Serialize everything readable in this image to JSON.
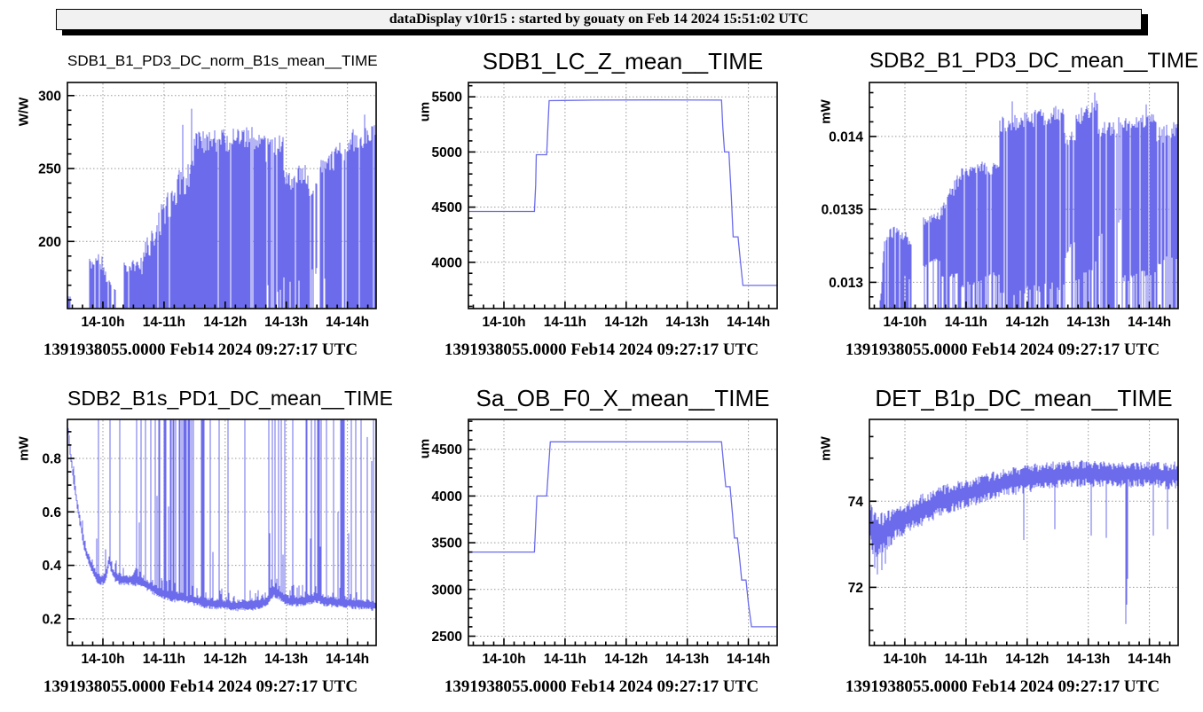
{
  "header": {
    "text": "dataDisplay v10r15 : started by gouaty on Feb 14 2024 15:51:02 UTC"
  },
  "colors": {
    "series": "#6b6bec",
    "grid": "#999999",
    "frame": "#000000",
    "header_bg": "#f1f1f1"
  },
  "time_axis": {
    "range_hours": [
      9.42,
      14.47
    ],
    "minor_ticks_per_hour": 6,
    "ticks": [
      {
        "value": 10,
        "label": "14-10h"
      },
      {
        "value": 11,
        "label": "14-11h"
      },
      {
        "value": 12,
        "label": "14-12h"
      },
      {
        "value": 13,
        "label": "14-13h"
      },
      {
        "value": 14,
        "label": "14-14h"
      }
    ]
  },
  "segment_keys": "x0,x1,top0,top1,bot0,bot1,gap_prob,bottom_spike_prob,top_jitter",
  "chart_data": [
    {
      "type": "area",
      "style": "noisy_fill",
      "title": "SDB1_B1_PD3_DC_norm_B1s_mean__TIME",
      "ylabel": "W/W",
      "footer": "1391938055.0000 Feb14 2024 09:27:17 UTC",
      "ylim": [
        154,
        309
      ],
      "yticks": [
        {
          "value": 200,
          "label": "200"
        },
        {
          "value": 250,
          "label": "250"
        },
        {
          "value": 300,
          "label": "300"
        }
      ],
      "y_minor": 10,
      "series": {
        "segments": [
          [
            9.44,
            9.47,
            166,
            160,
            154,
            154,
            0.3,
            1,
            4
          ],
          [
            9.79,
            9.93,
            184,
            190,
            154,
            154,
            0.04,
            1,
            5
          ],
          [
            9.96,
            10.08,
            189,
            172,
            154,
            154,
            0.06,
            1,
            6
          ],
          [
            10.1,
            10.22,
            173,
            168,
            154,
            154,
            0.12,
            1,
            5
          ],
          [
            10.35,
            10.62,
            183,
            184,
            154,
            154,
            0.03,
            1,
            4
          ],
          [
            10.62,
            10.95,
            186,
            214,
            154,
            154,
            0.06,
            1,
            10
          ],
          [
            10.95,
            11.25,
            214,
            238,
            154,
            154,
            0.07,
            1,
            12
          ],
          [
            11.25,
            11.5,
            238,
            249,
            154,
            154,
            0.07,
            1,
            13
          ],
          [
            11.5,
            12.65,
            267,
            272,
            154,
            154,
            0.05,
            1,
            8
          ],
          [
            12.65,
            12.95,
            263,
            265,
            162,
            162,
            0.14,
            0.8,
            9
          ],
          [
            12.95,
            13.35,
            241,
            246,
            168,
            168,
            0.12,
            0.75,
            8
          ],
          [
            13.35,
            13.55,
            232,
            238,
            176,
            176,
            0.22,
            0.7,
            8
          ],
          [
            13.55,
            13.7,
            248,
            251,
            170,
            170,
            0.14,
            0.8,
            8
          ],
          [
            13.7,
            14.05,
            254,
            266,
            154,
            154,
            0.07,
            1,
            8
          ],
          [
            14.05,
            14.47,
            269,
            274,
            154,
            154,
            0.06,
            1,
            8
          ]
        ],
        "spikes": [
          [
            11.3,
            280
          ],
          [
            11.45,
            291
          ],
          [
            14.28,
            287
          ],
          [
            14.33,
            276
          ]
        ]
      }
    },
    {
      "type": "line",
      "style": "step_line",
      "title": "SDB1_LC_Z_mean__TIME",
      "ylabel": "um",
      "footer": "1391938055.0000 Feb14 2024 09:27:17 UTC",
      "ylim": [
        3580,
        5630
      ],
      "yticks": [
        {
          "value": 4000,
          "label": "4000"
        },
        {
          "value": 4500,
          "label": "4500"
        },
        {
          "value": 5000,
          "label": "5000"
        },
        {
          "value": 5500,
          "label": "5500"
        }
      ],
      "y_minor": 100,
      "series": {
        "points": [
          [
            9.42,
            4460
          ],
          [
            10.5,
            4460
          ],
          [
            10.52,
            4700
          ],
          [
            10.53,
            4975
          ],
          [
            10.7,
            4975
          ],
          [
            10.72,
            5230
          ],
          [
            10.74,
            5465
          ],
          [
            11.5,
            5470
          ],
          [
            12.5,
            5472
          ],
          [
            13.56,
            5470
          ],
          [
            13.58,
            5230
          ],
          [
            13.61,
            5000
          ],
          [
            13.68,
            5000
          ],
          [
            13.72,
            4600
          ],
          [
            13.75,
            4230
          ],
          [
            13.83,
            4230
          ],
          [
            13.87,
            4000
          ],
          [
            13.91,
            3790
          ],
          [
            14.47,
            3790
          ]
        ]
      }
    },
    {
      "type": "area",
      "style": "noisy_fill",
      "title": "SDB2_B1_PD3_DC_mean__TIME",
      "ylabel": "mW",
      "footer": "1391938055.0000 Feb14 2024 09:27:17 UTC",
      "ylim": [
        0.01282,
        0.01437
      ],
      "yticks": [
        {
          "value": 0.013,
          "label": "0.013"
        },
        {
          "value": 0.0135,
          "label": "0.0135"
        },
        {
          "value": 0.014,
          "label": "0.014"
        }
      ],
      "y_minor": 0.0001,
      "series": {
        "segments": [
          [
            9.6,
            9.66,
            0.0129,
            0.01325,
            0.01282,
            0.01282,
            0.05,
            1,
            5e-05
          ],
          [
            9.7,
            9.9,
            0.01332,
            0.01336,
            0.01284,
            0.013,
            0.07,
            0.9,
            4e-05
          ],
          [
            9.93,
            10.12,
            0.01333,
            0.01328,
            0.013,
            0.01302,
            0.14,
            0.6,
            4e-05
          ],
          [
            10.3,
            10.6,
            0.01342,
            0.01346,
            0.0131,
            0.01315,
            0.05,
            0.5,
            3e-05
          ],
          [
            10.6,
            10.9,
            0.01348,
            0.01372,
            0.013,
            0.01305,
            0.09,
            0.55,
            5e-05
          ],
          [
            10.9,
            11.3,
            0.01374,
            0.0138,
            0.01295,
            0.013,
            0.09,
            0.55,
            4e-05
          ],
          [
            11.3,
            11.55,
            0.01376,
            0.0138,
            0.013,
            0.01305,
            0.16,
            0.55,
            4e-05
          ],
          [
            11.55,
            12.6,
            0.01408,
            0.01416,
            0.0129,
            0.01295,
            0.06,
            0.7,
            6e-05
          ],
          [
            12.6,
            12.8,
            0.01398,
            0.014,
            0.0131,
            0.0133,
            0.26,
            0.65,
            5e-05
          ],
          [
            12.8,
            13.15,
            0.01412,
            0.01419,
            0.013,
            0.0131,
            0.09,
            0.65,
            6e-05
          ],
          [
            13.15,
            13.55,
            0.01405,
            0.01408,
            0.0133,
            0.0134,
            0.3,
            0.8,
            6e-05
          ],
          [
            13.55,
            14.1,
            0.01408,
            0.01412,
            0.013,
            0.01305,
            0.09,
            0.65,
            5e-05
          ],
          [
            14.1,
            14.47,
            0.014,
            0.01405,
            0.0131,
            0.01315,
            0.16,
            0.7,
            6e-05
          ]
        ],
        "spikes": [
          [
            11.76,
            0.01424
          ],
          [
            13.1,
            0.0143
          ],
          [
            13.95,
            0.01422
          ]
        ]
      }
    },
    {
      "type": "line",
      "style": "baseline_with_spikes",
      "title": "SDB2_B1s_PD1_DC_mean__TIME",
      "ylabel": "mW",
      "footer": "1391938055.0000 Feb14 2024 09:27:17 UTC",
      "ylim": [
        0.1,
        0.946
      ],
      "yticks": [
        {
          "value": 0.2,
          "label": "0.2"
        },
        {
          "value": 0.4,
          "label": "0.4"
        },
        {
          "value": 0.6,
          "label": "0.6"
        },
        {
          "value": 0.8,
          "label": "0.8"
        }
      ],
      "y_minor": 0.05,
      "series": {
        "baseline": [
          [
            9.42,
            0.93
          ],
          [
            9.47,
            0.82
          ],
          [
            9.52,
            0.72
          ],
          [
            9.6,
            0.6
          ],
          [
            9.7,
            0.47
          ],
          [
            9.8,
            0.4
          ],
          [
            9.9,
            0.355
          ],
          [
            10.0,
            0.345
          ],
          [
            10.05,
            0.36
          ],
          [
            10.1,
            0.42
          ],
          [
            10.15,
            0.38
          ],
          [
            10.2,
            0.36
          ],
          [
            10.3,
            0.345
          ],
          [
            10.5,
            0.345
          ],
          [
            10.6,
            0.34
          ],
          [
            10.7,
            0.33
          ],
          [
            10.8,
            0.315
          ],
          [
            10.9,
            0.3
          ],
          [
            11.0,
            0.295
          ],
          [
            11.1,
            0.285
          ],
          [
            11.3,
            0.28
          ],
          [
            11.5,
            0.27
          ],
          [
            11.7,
            0.26
          ],
          [
            11.9,
            0.255
          ],
          [
            12.1,
            0.25
          ],
          [
            12.4,
            0.25
          ],
          [
            12.6,
            0.255
          ],
          [
            12.7,
            0.27
          ],
          [
            12.8,
            0.3
          ],
          [
            12.9,
            0.29
          ],
          [
            13.0,
            0.27
          ],
          [
            13.2,
            0.265
          ],
          [
            13.4,
            0.275
          ],
          [
            13.5,
            0.28
          ],
          [
            13.6,
            0.27
          ],
          [
            13.8,
            0.262
          ],
          [
            14.0,
            0.26
          ],
          [
            14.2,
            0.255
          ],
          [
            14.47,
            0.25
          ]
        ],
        "thickness": 0.022,
        "fuzz_prob": 0.3,
        "fuzz_amp": 0.05,
        "spike_top": 0.945,
        "spikes_full": [
          9.93,
          10.12,
          10.27,
          10.55,
          10.63,
          10.7,
          10.78,
          10.86,
          10.93,
          11.75,
          11.9,
          12.05,
          12.32,
          13.1,
          13.78
        ],
        "dense_ranges": [
          [
            10.85,
            11.65,
            0.5
          ],
          [
            12.68,
            13.02,
            0.3
          ],
          [
            13.3,
            13.68,
            0.3
          ],
          [
            13.88,
            14.47,
            0.25
          ]
        ],
        "spikes_partial": [
          [
            9.9,
            0.5
          ],
          [
            10.05,
            0.46
          ],
          [
            10.6,
            0.56
          ],
          [
            10.88,
            0.66
          ],
          [
            11.07,
            0.62
          ],
          [
            11.35,
            0.55
          ],
          [
            11.8,
            0.45
          ],
          [
            12.73,
            0.52
          ],
          [
            12.95,
            0.44
          ],
          [
            13.4,
            0.5
          ],
          [
            13.55,
            0.47
          ],
          [
            13.85,
            0.6
          ],
          [
            14.02,
            0.52
          ],
          [
            14.33,
            0.88
          ],
          [
            14.4,
            0.79
          ],
          [
            14.47,
            0.6
          ]
        ]
      }
    },
    {
      "type": "line",
      "style": "step_line",
      "title": "Sa_OB_F0_X_mean__TIME",
      "ylabel": "um",
      "footer": "1391938055.0000 Feb14 2024 09:27:17 UTC",
      "ylim": [
        2400,
        4820
      ],
      "yticks": [
        {
          "value": 2500,
          "label": "2500"
        },
        {
          "value": 3000,
          "label": "3000"
        },
        {
          "value": 3500,
          "label": "3500"
        },
        {
          "value": 4000,
          "label": "4000"
        },
        {
          "value": 4500,
          "label": "4500"
        }
      ],
      "y_minor": 100,
      "series": {
        "points": [
          [
            9.42,
            3400
          ],
          [
            10.5,
            3400
          ],
          [
            10.52,
            3700
          ],
          [
            10.54,
            4000
          ],
          [
            10.7,
            4000
          ],
          [
            10.73,
            4300
          ],
          [
            10.76,
            4580
          ],
          [
            13.56,
            4580
          ],
          [
            13.6,
            4300
          ],
          [
            13.63,
            4100
          ],
          [
            13.7,
            4100
          ],
          [
            13.74,
            3800
          ],
          [
            13.77,
            3550
          ],
          [
            13.82,
            3550
          ],
          [
            13.86,
            3300
          ],
          [
            13.89,
            3100
          ],
          [
            13.96,
            3100
          ],
          [
            14.0,
            2850
          ],
          [
            14.05,
            2600
          ],
          [
            14.47,
            2600
          ]
        ]
      }
    },
    {
      "type": "line",
      "style": "noisy_band",
      "title": "DET_B1p_DC_mean__TIME",
      "ylabel": "mW",
      "footer": "1391938055.0000 Feb14 2024 09:27:17 UTC",
      "ylim": [
        70.65,
        75.9
      ],
      "yticks": [
        {
          "value": 72,
          "label": "72"
        },
        {
          "value": 74,
          "label": "74"
        }
      ],
      "y_minor": 0.5,
      "series": {
        "mean": [
          [
            9.42,
            73.62
          ],
          [
            9.48,
            73.25
          ],
          [
            9.58,
            73.18
          ],
          [
            9.7,
            73.32
          ],
          [
            9.85,
            73.5
          ],
          [
            10.0,
            73.6
          ],
          [
            10.2,
            73.75
          ],
          [
            10.5,
            73.95
          ],
          [
            10.8,
            74.1
          ],
          [
            11.1,
            74.22
          ],
          [
            11.4,
            74.33
          ],
          [
            11.7,
            74.45
          ],
          [
            12.0,
            74.52
          ],
          [
            12.3,
            74.58
          ],
          [
            12.6,
            74.62
          ],
          [
            12.9,
            74.65
          ],
          [
            13.2,
            74.62
          ],
          [
            13.5,
            74.6
          ],
          [
            13.8,
            74.63
          ],
          [
            14.1,
            74.62
          ],
          [
            14.3,
            74.58
          ],
          [
            14.47,
            74.63
          ]
        ],
        "amplitude": [
          [
            9.42,
            0.5
          ],
          [
            9.6,
            0.55
          ],
          [
            9.8,
            0.42
          ],
          [
            10.2,
            0.38
          ],
          [
            11.0,
            0.35
          ],
          [
            12.0,
            0.33
          ],
          [
            13.0,
            0.32
          ],
          [
            14.0,
            0.3
          ],
          [
            14.47,
            0.32
          ]
        ],
        "down_spikes": [
          [
            9.5,
            72.45
          ],
          [
            9.55,
            72.3
          ],
          [
            9.62,
            72.4
          ],
          [
            9.68,
            72.55
          ],
          [
            11.95,
            73.1
          ],
          [
            12.45,
            73.35
          ],
          [
            13.05,
            73.2
          ],
          [
            13.3,
            73.15
          ],
          [
            13.62,
            71.15
          ],
          [
            13.63,
            71.6
          ],
          [
            13.64,
            72.2
          ],
          [
            14.07,
            73.2
          ],
          [
            14.3,
            73.35
          ]
        ]
      }
    }
  ]
}
